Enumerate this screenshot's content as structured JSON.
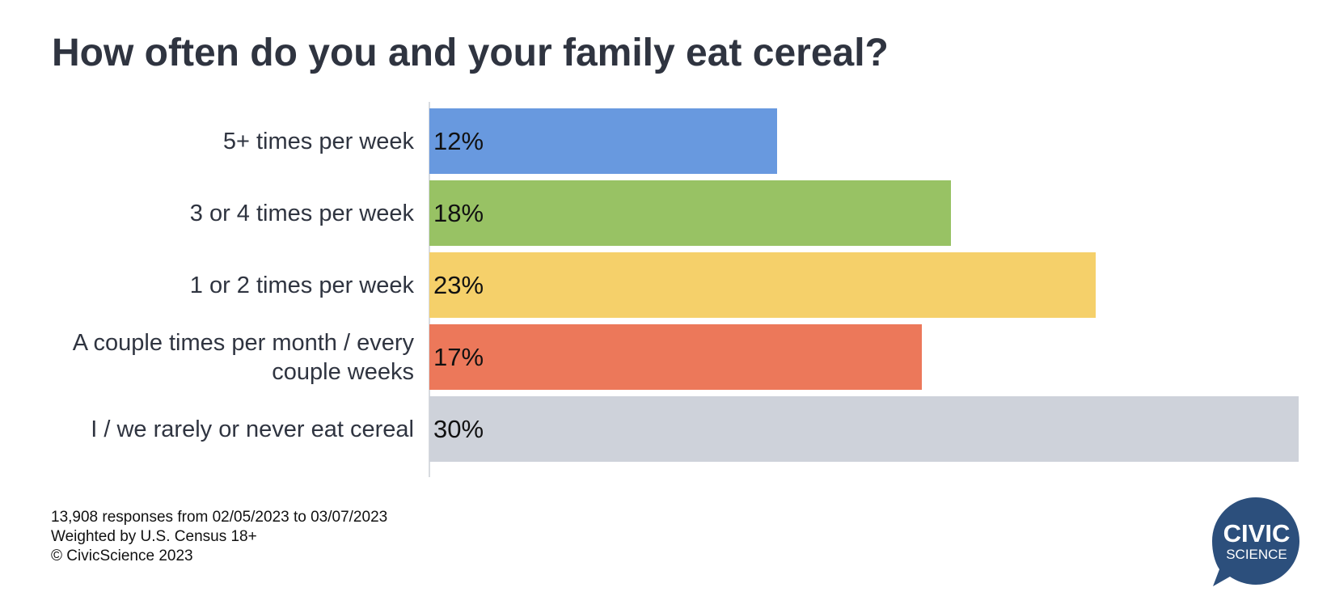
{
  "chart_data": {
    "type": "bar",
    "orientation": "horizontal",
    "title": "How often do you and your family eat cereal?",
    "categories": [
      "5+ times per week",
      "3 or 4 times per week",
      "1 or 2 times per week",
      "A couple times per month / every couple weeks",
      "I / we rarely or never eat cereal"
    ],
    "values": [
      12,
      18,
      23,
      17,
      30
    ],
    "value_labels": [
      "12%",
      "18%",
      "23%",
      "17%",
      "30%"
    ],
    "colors": [
      "#6899df",
      "#98c264",
      "#f5d06a",
      "#ec785a",
      "#ced2da"
    ],
    "xlim": [
      0,
      30
    ],
    "grid": false,
    "legend": "none"
  },
  "footer": {
    "line1": "13,908 responses from 02/05/2023 to 03/07/2023",
    "line2": "Weighted by U.S. Census 18+",
    "line3": "© CivicScience 2023"
  },
  "logo": {
    "line1": "CIVIC",
    "line2": "SCIENCE",
    "color": "#2c4f7c"
  }
}
